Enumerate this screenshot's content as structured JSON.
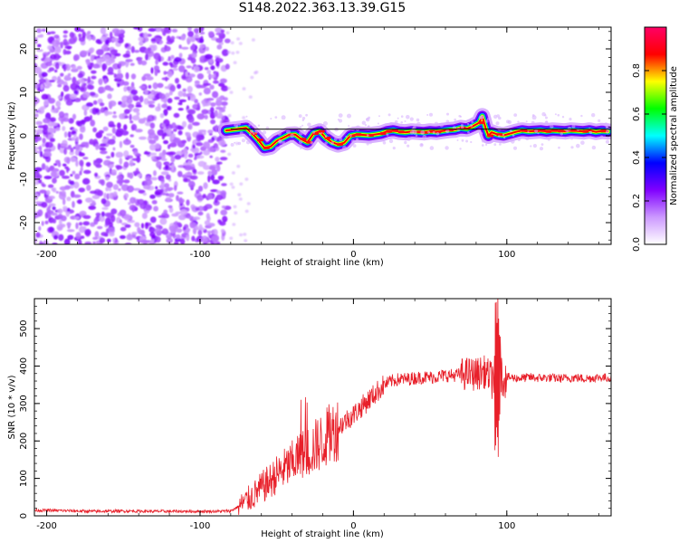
{
  "figure": {
    "title": "S148.2022.363.13.39.G15"
  },
  "chart_data": [
    {
      "type": "heatmap",
      "xlabel": "Height of straight line (km)",
      "ylabel": "Frequency (Hz)",
      "xlim": [
        -208,
        168
      ],
      "ylim": [
        -25,
        25
      ],
      "xticks": [
        -200,
        -100,
        0,
        100
      ],
      "yticks": [
        -20,
        -10,
        0,
        10,
        20
      ],
      "colorbar": {
        "label": "Normalized spectral amplitude",
        "range": [
          0,
          1
        ],
        "ticks": [
          0.0,
          0.2,
          0.4,
          0.6,
          0.8
        ],
        "colors": [
          "#ffffff",
          "#cc99ff",
          "#8000ff",
          "#0000ff",
          "#00ffff",
          "#00ff00",
          "#ffff00",
          "#ff0000",
          "#ff0066"
        ]
      },
      "noise_region_x": [
        -208,
        -82
      ],
      "reference_line": {
        "x": [
          -80,
          168
        ],
        "y": [
          1.5,
          1.5
        ]
      },
      "ridge": {
        "x": [
          -83,
          -76,
          -70,
          -66,
          -62,
          -58,
          -54,
          -50,
          -46,
          -42,
          -38,
          -34,
          -30,
          -26,
          -22,
          -18,
          -14,
          -10,
          -6,
          -2,
          2,
          6,
          10,
          14,
          18,
          22,
          26,
          30,
          34,
          38,
          42,
          46,
          50,
          54,
          58,
          62,
          66,
          70,
          74,
          78,
          82,
          84,
          86,
          88,
          90,
          94,
          98,
          102,
          106,
          110,
          114,
          118,
          122,
          126,
          130,
          134,
          138,
          142,
          146,
          150,
          154,
          158,
          162,
          166
        ],
        "y": [
          1.2,
          1.5,
          1.8,
          0.5,
          -1.0,
          -2.8,
          -2.5,
          -1.2,
          -0.5,
          0.2,
          0.3,
          -0.8,
          -1.5,
          0.5,
          1.0,
          -0.5,
          -1.5,
          -2.0,
          -1.6,
          0.0,
          0.3,
          0.2,
          0.1,
          0.3,
          0.5,
          1.0,
          1.2,
          0.9,
          0.8,
          1.0,
          0.9,
          0.8,
          1.0,
          0.9,
          1.1,
          1.3,
          1.4,
          1.8,
          1.6,
          2.2,
          3.0,
          4.5,
          2.0,
          0.0,
          0.8,
          0.3,
          0.1,
          0.5,
          0.9,
          1.2,
          1.0,
          1.1,
          1.2,
          1.0,
          1.2,
          1.1,
          1.0,
          1.2,
          1.1,
          1.0,
          1.2,
          0.9,
          1.1,
          1.0
        ]
      }
    },
    {
      "type": "line",
      "xlabel": "Height of straight line (km)",
      "ylabel": "SNR (10 * v/v)",
      "xlim": [
        -208,
        168
      ],
      "ylim": [
        0,
        580
      ],
      "xticks": [
        -200,
        -100,
        0,
        100
      ],
      "yticks": [
        0,
        100,
        200,
        300,
        400,
        500
      ],
      "color": "#e8202a",
      "series": [
        {
          "x": [
            -208,
            -190,
            -170,
            -150,
            -130,
            -110,
            -90,
            -80,
            -75,
            -70,
            -65,
            -60,
            -55,
            -50,
            -45,
            -40,
            -35,
            -30,
            -25,
            -20,
            -15,
            -10,
            -5,
            0,
            5,
            10,
            15,
            20,
            25,
            30,
            35,
            40,
            45,
            50,
            55,
            60,
            65,
            70,
            75,
            80,
            85,
            90,
            95,
            100,
            105,
            110,
            115,
            120,
            125,
            130,
            135,
            140,
            145,
            150,
            155,
            160,
            168
          ],
          "y": [
            15,
            14,
            12,
            13,
            12,
            12,
            12,
            13,
            25,
            40,
            55,
            75,
            90,
            110,
            125,
            140,
            160,
            170,
            185,
            200,
            220,
            235,
            255,
            270,
            290,
            310,
            330,
            350,
            360,
            365,
            365,
            368,
            370,
            370,
            372,
            375,
            375,
            378,
            380,
            378,
            385,
            370,
            380,
            370,
            368,
            368,
            370,
            368,
            369,
            368,
            367,
            368,
            369,
            367,
            368,
            370,
            368
          ]
        }
      ]
    }
  ]
}
